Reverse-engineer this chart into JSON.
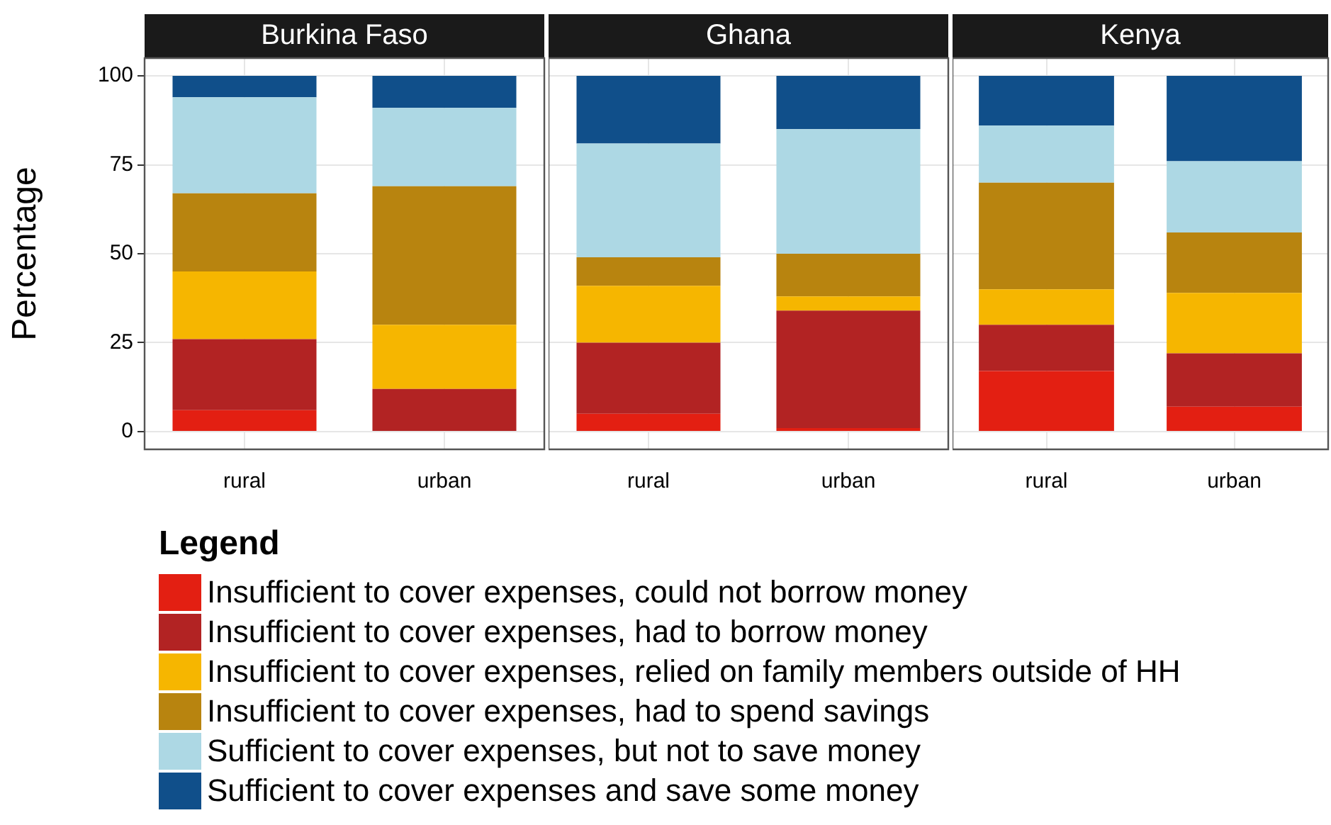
{
  "chart_data": [
    {
      "type": "bar",
      "title": "Burkina Faso",
      "ylabel": "Percentage",
      "legend_title": "Legend",
      "legend": "bottom",
      "stacked": true,
      "grid": true,
      "categories": [
        "rural",
        "urban"
      ],
      "ylim": [
        -5,
        105
      ],
      "yticks": [
        0,
        25,
        50,
        75,
        100
      ],
      "series": [
        {
          "name": "Insufficient to cover expenses, could not borrow money",
          "color": "#e31f12",
          "values": [
            6,
            0
          ]
        },
        {
          "name": "Insufficient to cover expenses, had to borrow money",
          "color": "#b22323",
          "values": [
            20,
            12
          ]
        },
        {
          "name": "Insufficient to cover expenses, relied on family members outside of HH",
          "color": "#f6b600",
          "values": [
            19,
            18
          ]
        },
        {
          "name": "Insufficient to cover expenses, had to spend savings",
          "color": "#b8840f",
          "values": [
            22,
            39
          ]
        },
        {
          "name": "Sufficient to cover expenses, but not to save money",
          "color": "#add8e4",
          "values": [
            27,
            22
          ]
        },
        {
          "name": "Sufficient to cover expenses and save some money",
          "color": "#104f8a",
          "values": [
            6,
            9
          ]
        }
      ]
    },
    {
      "type": "bar",
      "title": "Ghana",
      "stacked": true,
      "grid": true,
      "tick_labels": "x",
      "categories": [
        "rural",
        "urban"
      ],
      "ylim": [
        -5,
        105
      ],
      "yticks": [
        0,
        25,
        50,
        75,
        100
      ],
      "series": [
        {
          "color": "#e31f12",
          "values": [
            5,
            1
          ]
        },
        {
          "color": "#b22323",
          "values": [
            20,
            33
          ]
        },
        {
          "color": "#f6b600",
          "values": [
            16,
            4
          ]
        },
        {
          "color": "#b8840f",
          "values": [
            8,
            12
          ]
        },
        {
          "color": "#add8e4",
          "values": [
            32,
            35
          ]
        },
        {
          "color": "#104f8a",
          "values": [
            19,
            15
          ]
        }
      ]
    },
    {
      "type": "bar",
      "title": "Kenya",
      "stacked": true,
      "grid": true,
      "tick_labels": "x",
      "categories": [
        "rural",
        "urban"
      ],
      "ylim": [
        -5,
        105
      ],
      "yticks": [
        0,
        25,
        50,
        75,
        100
      ],
      "series": [
        {
          "color": "#e31f12",
          "values": [
            17,
            7
          ]
        },
        {
          "color": "#b22323",
          "values": [
            13,
            15
          ]
        },
        {
          "color": "#f6b600",
          "values": [
            10,
            17
          ]
        },
        {
          "color": "#b8840f",
          "values": [
            30,
            17
          ]
        },
        {
          "color": "#add8e4",
          "values": [
            16,
            20
          ]
        },
        {
          "color": "#104f8a",
          "values": [
            14,
            24
          ]
        }
      ]
    }
  ]
}
